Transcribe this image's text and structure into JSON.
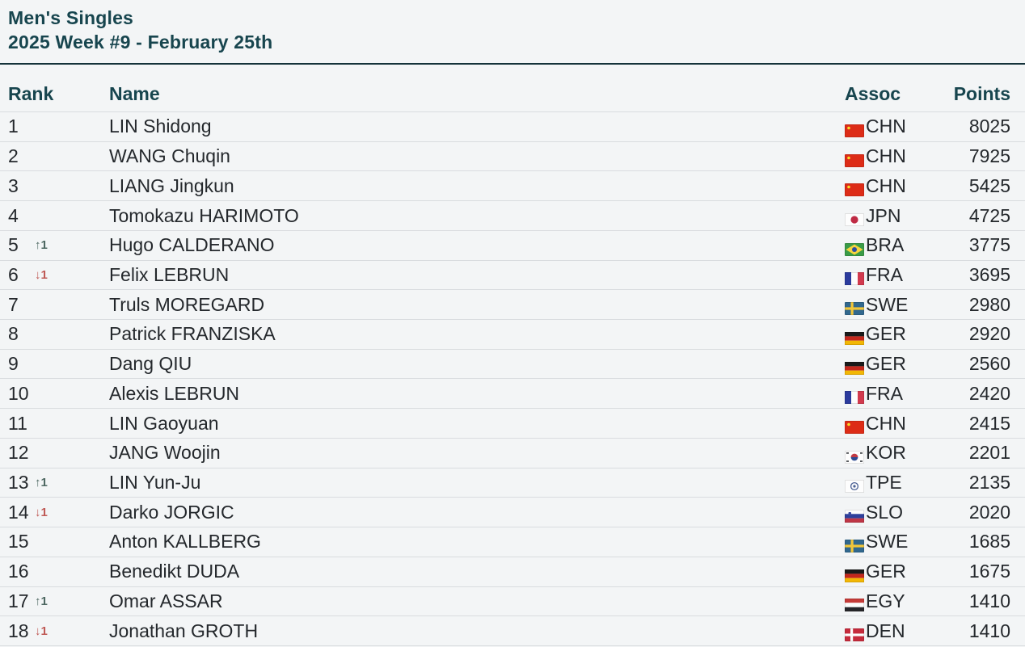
{
  "header": {
    "title_line1": "Men's Singles",
    "title_line2": "2025 Week #9 - February 25th"
  },
  "table": {
    "columns": {
      "rank": "Rank",
      "name": "Name",
      "assoc": "Assoc",
      "points": "Points"
    },
    "rows": [
      {
        "rank": 1,
        "change": null,
        "name": "LIN Shidong",
        "assoc": "CHN",
        "points": 8025
      },
      {
        "rank": 2,
        "change": null,
        "name": "WANG Chuqin",
        "assoc": "CHN",
        "points": 7925
      },
      {
        "rank": 3,
        "change": null,
        "name": "LIANG Jingkun",
        "assoc": "CHN",
        "points": 5425
      },
      {
        "rank": 4,
        "change": null,
        "name": "Tomokazu HARIMOTO",
        "assoc": "JPN",
        "points": 4725
      },
      {
        "rank": 5,
        "change": {
          "dir": "up",
          "value": 1
        },
        "name": "Hugo CALDERANO",
        "assoc": "BRA",
        "points": 3775
      },
      {
        "rank": 6,
        "change": {
          "dir": "down",
          "value": 1
        },
        "name": "Felix LEBRUN",
        "assoc": "FRA",
        "points": 3695
      },
      {
        "rank": 7,
        "change": null,
        "name": "Truls MOREGARD",
        "assoc": "SWE",
        "points": 2980
      },
      {
        "rank": 8,
        "change": null,
        "name": "Patrick FRANZISKA",
        "assoc": "GER",
        "points": 2920
      },
      {
        "rank": 9,
        "change": null,
        "name": "Dang QIU",
        "assoc": "GER",
        "points": 2560
      },
      {
        "rank": 10,
        "change": null,
        "name": "Alexis LEBRUN",
        "assoc": "FRA",
        "points": 2420
      },
      {
        "rank": 11,
        "change": null,
        "name": "LIN Gaoyuan",
        "assoc": "CHN",
        "points": 2415
      },
      {
        "rank": 12,
        "change": null,
        "name": "JANG Woojin",
        "assoc": "KOR",
        "points": 2201
      },
      {
        "rank": 13,
        "change": {
          "dir": "up",
          "value": 1
        },
        "name": "LIN Yun-Ju",
        "assoc": "TPE",
        "points": 2135
      },
      {
        "rank": 14,
        "change": {
          "dir": "down",
          "value": 1
        },
        "name": "Darko JORGIC",
        "assoc": "SLO",
        "points": 2020
      },
      {
        "rank": 15,
        "change": null,
        "name": "Anton KALLBERG",
        "assoc": "SWE",
        "points": 1685
      },
      {
        "rank": 16,
        "change": null,
        "name": "Benedikt DUDA",
        "assoc": "GER",
        "points": 1675
      },
      {
        "rank": 17,
        "change": {
          "dir": "up",
          "value": 1
        },
        "name": "Omar ASSAR",
        "assoc": "EGY",
        "points": 1410
      },
      {
        "rank": 18,
        "change": {
          "dir": "down",
          "value": 1
        },
        "name": "Jonathan GROTH",
        "assoc": "DEN",
        "points": 1410
      }
    ]
  },
  "icons": {
    "up_arrow": "↑",
    "down_arrow": "↓"
  },
  "colors": {
    "background": "#f3f5f6",
    "title": "#17454e",
    "title_rule": "#14323a",
    "body_text": "#24282c",
    "divider": "#d9dcdf",
    "up": "#4e6862",
    "down": "#bf5a56"
  }
}
